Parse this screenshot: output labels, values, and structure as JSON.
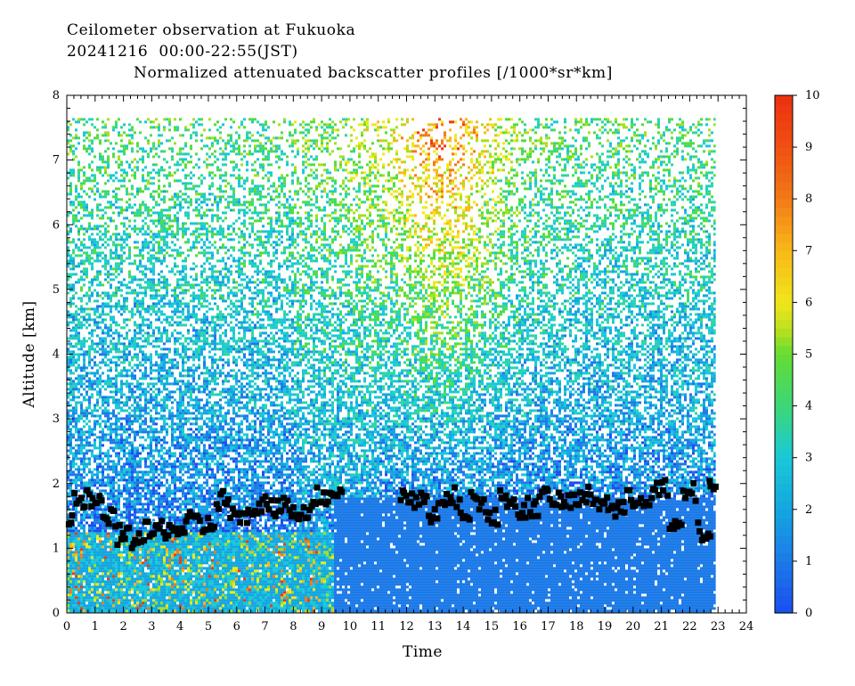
{
  "header": {
    "line1": "Ceilometer observation at Fukuoka",
    "line2": "20241216  00:00-22:55(JST)",
    "line3": "Normalized attenuated backscatter profiles [/1000*sr*km]"
  },
  "chart_data": {
    "type": "heatmap",
    "xlabel": "Time",
    "ylabel": "Altitude [km]",
    "xlim": [
      0,
      24
    ],
    "ylim": [
      0,
      8
    ],
    "data_xrange": [
      0,
      22.92
    ],
    "data_ytop": 7.65,
    "x_ticks": [
      "0",
      "1",
      "2",
      "3",
      "4",
      "5",
      "6",
      "7",
      "8",
      "9",
      "10",
      "11",
      "12",
      "13",
      "14",
      "15",
      "16",
      "17",
      "18",
      "19",
      "20",
      "21",
      "22",
      "23",
      "24"
    ],
    "y_ticks": [
      "0",
      "1",
      "2",
      "3",
      "4",
      "5",
      "6",
      "7",
      "8"
    ],
    "colorbar": {
      "range": [
        0,
        10
      ],
      "ticks": [
        "0",
        "1",
        "2",
        "3",
        "4",
        "5",
        "6",
        "7",
        "8",
        "9",
        "10"
      ],
      "colors": [
        "#1a4ef0",
        "#1c7ae8",
        "#14a6e0",
        "#19c8d8",
        "#2cd6a8",
        "#52dd3c",
        "#a4e01e",
        "#f0e81a",
        "#f8b818",
        "#f27a16",
        "#ee3a12"
      ]
    },
    "cloud_base_heights_km": [
      {
        "t": 0.0,
        "h": 1.35
      },
      {
        "t": 0.5,
        "h": 1.75
      },
      {
        "t": 1.0,
        "h": 1.7
      },
      {
        "t": 1.5,
        "h": 1.45
      },
      {
        "t": 2.0,
        "h": 1.2
      },
      {
        "t": 2.5,
        "h": 1.15
      },
      {
        "t": 3.0,
        "h": 1.25
      },
      {
        "t": 3.5,
        "h": 1.3
      },
      {
        "t": 4.0,
        "h": 1.3
      },
      {
        "t": 4.5,
        "h": 1.4
      },
      {
        "t": 5.0,
        "h": 1.35
      },
      {
        "t": 5.5,
        "h": 1.75
      },
      {
        "t": 6.0,
        "h": 1.5
      },
      {
        "t": 6.5,
        "h": 1.45
      },
      {
        "t": 7.0,
        "h": 1.7
      },
      {
        "t": 7.5,
        "h": 1.65
      },
      {
        "t": 8.0,
        "h": 1.6
      },
      {
        "t": 8.5,
        "h": 1.6
      },
      {
        "t": 9.0,
        "h": 1.8
      },
      {
        "t": 9.5,
        "h": 1.9
      },
      {
        "t": 12.0,
        "h": 1.8
      },
      {
        "t": 12.5,
        "h": 1.75
      },
      {
        "t": 13.0,
        "h": 1.55
      },
      {
        "t": 13.5,
        "h": 1.8
      },
      {
        "t": 14.0,
        "h": 1.6
      },
      {
        "t": 14.5,
        "h": 1.75
      },
      {
        "t": 15.0,
        "h": 1.45
      },
      {
        "t": 15.5,
        "h": 1.8
      },
      {
        "t": 16.0,
        "h": 1.6
      },
      {
        "t": 16.5,
        "h": 1.65
      },
      {
        "t": 17.0,
        "h": 1.8
      },
      {
        "t": 17.5,
        "h": 1.7
      },
      {
        "t": 18.0,
        "h": 1.75
      },
      {
        "t": 18.5,
        "h": 1.8
      },
      {
        "t": 19.0,
        "h": 1.7
      },
      {
        "t": 19.5,
        "h": 1.6
      },
      {
        "t": 20.0,
        "h": 1.75
      },
      {
        "t": 20.5,
        "h": 1.8
      },
      {
        "t": 21.0,
        "h": 1.9
      },
      {
        "t": 21.5,
        "h": 1.3
      },
      {
        "t": 22.0,
        "h": 1.85
      },
      {
        "t": 22.5,
        "h": 1.25
      },
      {
        "t": 22.9,
        "h": 1.9
      }
    ]
  }
}
